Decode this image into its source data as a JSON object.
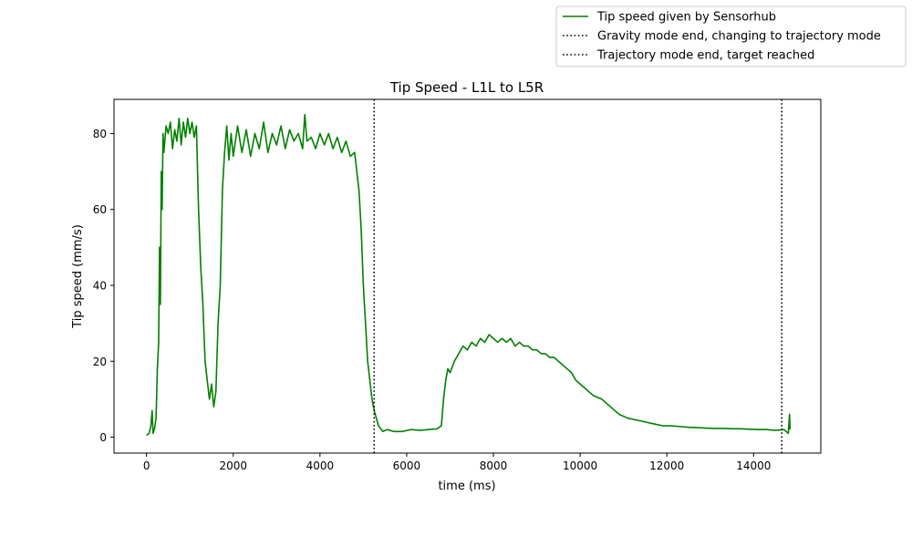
{
  "chart_data": {
    "type": "line",
    "title": "Tip Speed - L1L to L5R",
    "xlabel": "time (ms)",
    "ylabel": "Tip speed (mm/s)",
    "xlim": [
      -750,
      15550
    ],
    "ylim": [
      -4.2,
      89
    ],
    "x_ticks": [
      0,
      2000,
      4000,
      6000,
      8000,
      10000,
      12000,
      14000
    ],
    "y_ticks": [
      0,
      20,
      40,
      60,
      80
    ],
    "x_tick_labels": [
      "0",
      "2000",
      "4000",
      "6000",
      "8000",
      "10000",
      "12000",
      "14000"
    ],
    "y_tick_labels": [
      "0",
      "20",
      "40",
      "60",
      "80"
    ],
    "grid": false,
    "legend_position": "top-right, outside plot",
    "series": [
      {
        "name": "Tip speed given by Sensorhub",
        "color": "#008000",
        "style": "solid",
        "points": [
          [
            0,
            0.5
          ],
          [
            60,
            1
          ],
          [
            100,
            3
          ],
          [
            130,
            7
          ],
          [
            150,
            1
          ],
          [
            180,
            2
          ],
          [
            220,
            5
          ],
          [
            250,
            18
          ],
          [
            280,
            25
          ],
          [
            300,
            50
          ],
          [
            320,
            35
          ],
          [
            340,
            70
          ],
          [
            360,
            60
          ],
          [
            380,
            80
          ],
          [
            400,
            75
          ],
          [
            450,
            82
          ],
          [
            500,
            80
          ],
          [
            550,
            83
          ],
          [
            600,
            76
          ],
          [
            650,
            81
          ],
          [
            700,
            78
          ],
          [
            750,
            84
          ],
          [
            800,
            77
          ],
          [
            850,
            83
          ],
          [
            900,
            79
          ],
          [
            950,
            84
          ],
          [
            1000,
            80
          ],
          [
            1050,
            83
          ],
          [
            1100,
            79
          ],
          [
            1150,
            82
          ],
          [
            1200,
            60
          ],
          [
            1250,
            45
          ],
          [
            1300,
            35
          ],
          [
            1350,
            20
          ],
          [
            1400,
            15
          ],
          [
            1450,
            10
          ],
          [
            1500,
            14
          ],
          [
            1550,
            8
          ],
          [
            1600,
            12
          ],
          [
            1650,
            30
          ],
          [
            1700,
            40
          ],
          [
            1750,
            65
          ],
          [
            1800,
            75
          ],
          [
            1850,
            82
          ],
          [
            1900,
            73
          ],
          [
            1950,
            80
          ],
          [
            2000,
            74
          ],
          [
            2100,
            82
          ],
          [
            2200,
            75
          ],
          [
            2300,
            81
          ],
          [
            2400,
            74
          ],
          [
            2500,
            80
          ],
          [
            2600,
            76
          ],
          [
            2700,
            83
          ],
          [
            2800,
            75
          ],
          [
            2900,
            80
          ],
          [
            3000,
            77
          ],
          [
            3100,
            82
          ],
          [
            3200,
            76
          ],
          [
            3300,
            81
          ],
          [
            3400,
            78
          ],
          [
            3500,
            80
          ],
          [
            3600,
            76
          ],
          [
            3650,
            85
          ],
          [
            3700,
            78
          ],
          [
            3800,
            79
          ],
          [
            3900,
            76
          ],
          [
            4000,
            80
          ],
          [
            4100,
            77
          ],
          [
            4200,
            80
          ],
          [
            4300,
            76
          ],
          [
            4400,
            79
          ],
          [
            4500,
            75
          ],
          [
            4600,
            78
          ],
          [
            4700,
            74
          ],
          [
            4800,
            75
          ],
          [
            4850,
            70
          ],
          [
            4900,
            65
          ],
          [
            4950,
            55
          ],
          [
            5000,
            40
          ],
          [
            5050,
            30
          ],
          [
            5100,
            20
          ],
          [
            5150,
            15
          ],
          [
            5200,
            10
          ],
          [
            5250,
            7
          ],
          [
            5300,
            5
          ],
          [
            5350,
            3
          ],
          [
            5450,
            1.5
          ],
          [
            5550,
            2
          ],
          [
            5700,
            1.5
          ],
          [
            5900,
            1.5
          ],
          [
            6100,
            2
          ],
          [
            6300,
            1.8
          ],
          [
            6500,
            2
          ],
          [
            6700,
            2.2
          ],
          [
            6800,
            3
          ],
          [
            6850,
            10
          ],
          [
            6900,
            15
          ],
          [
            6950,
            18
          ],
          [
            7000,
            17
          ],
          [
            7100,
            20
          ],
          [
            7200,
            22
          ],
          [
            7300,
            24
          ],
          [
            7400,
            23
          ],
          [
            7500,
            25
          ],
          [
            7600,
            24
          ],
          [
            7700,
            26
          ],
          [
            7800,
            25
          ],
          [
            7900,
            27
          ],
          [
            8000,
            26
          ],
          [
            8100,
            25
          ],
          [
            8200,
            26
          ],
          [
            8300,
            25
          ],
          [
            8400,
            26
          ],
          [
            8500,
            24
          ],
          [
            8600,
            25
          ],
          [
            8700,
            24
          ],
          [
            8800,
            24
          ],
          [
            8900,
            23
          ],
          [
            9000,
            23
          ],
          [
            9100,
            22
          ],
          [
            9200,
            22
          ],
          [
            9300,
            21
          ],
          [
            9400,
            21
          ],
          [
            9500,
            20
          ],
          [
            9600,
            19
          ],
          [
            9700,
            18
          ],
          [
            9800,
            17
          ],
          [
            9900,
            15
          ],
          [
            10000,
            14
          ],
          [
            10100,
            13
          ],
          [
            10200,
            12
          ],
          [
            10300,
            11
          ],
          [
            10500,
            10
          ],
          [
            10700,
            8
          ],
          [
            10900,
            6
          ],
          [
            11100,
            5
          ],
          [
            11300,
            4.5
          ],
          [
            11500,
            4
          ],
          [
            11700,
            3.5
          ],
          [
            11900,
            3
          ],
          [
            12100,
            3
          ],
          [
            12300,
            2.8
          ],
          [
            12500,
            2.6
          ],
          [
            12700,
            2.5
          ],
          [
            12900,
            2.4
          ],
          [
            13100,
            2.3
          ],
          [
            13300,
            2.3
          ],
          [
            13500,
            2.2
          ],
          [
            13700,
            2.2
          ],
          [
            13900,
            2.1
          ],
          [
            14100,
            2
          ],
          [
            14300,
            2
          ],
          [
            14500,
            1.8
          ],
          [
            14700,
            2
          ],
          [
            14800,
            1
          ],
          [
            14830,
            6
          ],
          [
            14840,
            2
          ]
        ]
      }
    ],
    "vlines": [
      {
        "name": "Gravity mode end, changing to trajectory mode",
        "x": 5250,
        "color": "#000000",
        "style": "dotted"
      },
      {
        "name": "Trajectory mode end, target reached",
        "x": 14650,
        "color": "#000000",
        "style": "dotted"
      }
    ]
  }
}
